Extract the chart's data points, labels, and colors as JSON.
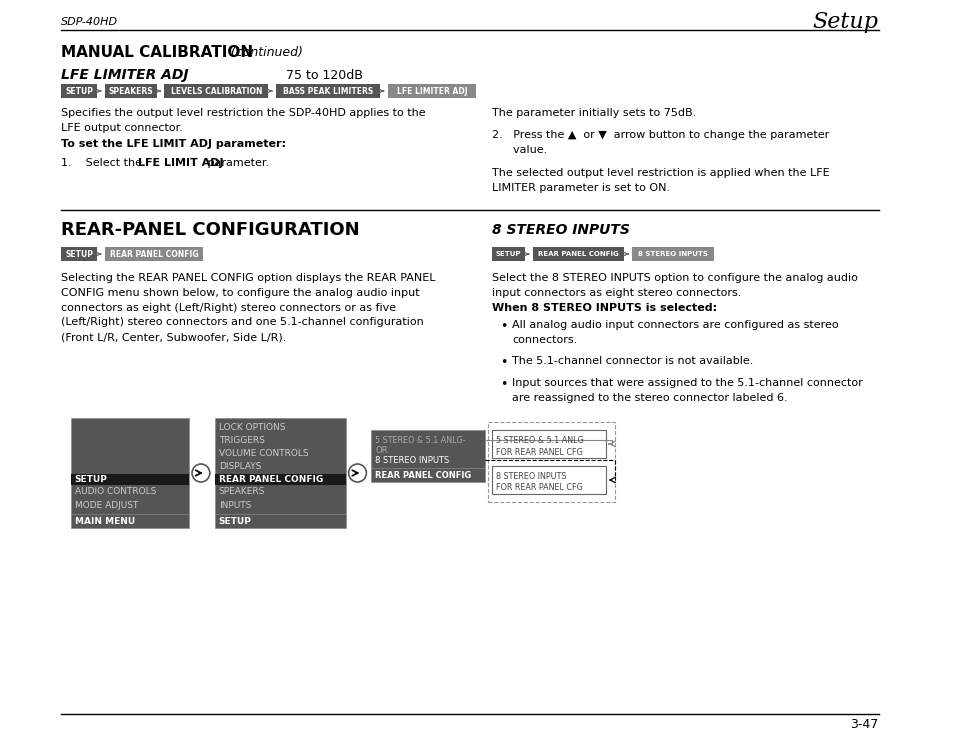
{
  "bg_color": "#ffffff",
  "page_width": 9.54,
  "page_height": 7.38,
  "header_left": "SDP-40HD",
  "header_right": "Setup",
  "footer_right": "3-47",
  "section1_title": "MANUAL CALIBRATION",
  "section1_title_cont": " (continued)",
  "subsection1_title": "LFE LIMITER ADJ",
  "subsection1_range": "75 to 120dB",
  "breadcrumb1": [
    "SETUP",
    "SPEAKERS",
    "LEVELS CALIBRATION",
    "BASS PEAK LIMITERS",
    "LFE LIMITER ADJ"
  ],
  "para1": "Specifies the output level restriction the SDP-40HD applies to the\nLFE output connector.",
  "set_param_title": "To set the LFE LIMIT ADJ parameter:",
  "right_col1_line1": "The parameter initially sets to 75dB.",
  "step2_text": "2.   Press the ▲  or ▼  arrow button to change the parameter\n      value.",
  "right_col1_line3": "The selected output level restriction is applied when the LFE\nLIMITER parameter is set to ON.",
  "section2_title": "REAR-PANEL CONFIGURATION",
  "breadcrumb2": [
    "SETUP",
    "REAR PANEL CONFIG"
  ],
  "section2_para": "Selecting the REAR PANEL CONFIG option displays the REAR PANEL\nCONFIG menu shown below, to configure the analog audio input\nconnectors as eight (Left/Right) stereo connectors or as five\n(Left/Right) stereo connectors and one 5.1-channel configuration\n(Front L/R, Center, Subwoofer, Side L/R).",
  "subsection2_title": "8 STEREO INPUTS",
  "breadcrumb3": [
    "SETUP",
    "REAR PANEL CONFIG",
    "8 STEREO INPUTS"
  ],
  "section2_right_para": "Select the 8 STEREO INPUTS option to configure the analog audio\ninput connectors as eight stereo connectors.",
  "when_selected_title": "When 8 STEREO INPUTS is selected:",
  "bullets": [
    "All analog audio input connectors are configured as stereo\nconnectors.",
    "The 5.1-channel connector is not available.",
    "Input sources that were assigned to the 5.1-channel connector\nare reassigned to the stereo connector labeled 6."
  ],
  "menu_col1_header": "MAIN MENU",
  "menu_col1_items": [
    "MODE ADJUST",
    "AUDIO CONTROLS",
    "SETUP"
  ],
  "menu_col1_selected": "SETUP",
  "menu_col2_header": "SETUP",
  "menu_col2_items": [
    "INPUTS",
    "SPEAKERS",
    "REAR PANEL CONFIG",
    "DISPLAYS",
    "VOLUME CONTROLS",
    "TRIGGERS",
    "LOCK OPTIONS"
  ],
  "menu_col2_selected": "REAR PANEL CONFIG",
  "menu_col3_header": "REAR PANEL CONFIG",
  "menu_box1_text1": "5 STEREO & 5.1 ANLG",
  "menu_box1_text2": "FOR REAR PANEL CFG",
  "menu_box2_text1": "8 STEREO INPUTS",
  "menu_box2_text2": "FOR REAR PANEL CFG",
  "dark_bg": "#555555",
  "black_bg": "#1a1a1a",
  "mid_gray": "#888888",
  "light_gray_text": "#cccccc",
  "dim_text": "#aaaaaa"
}
